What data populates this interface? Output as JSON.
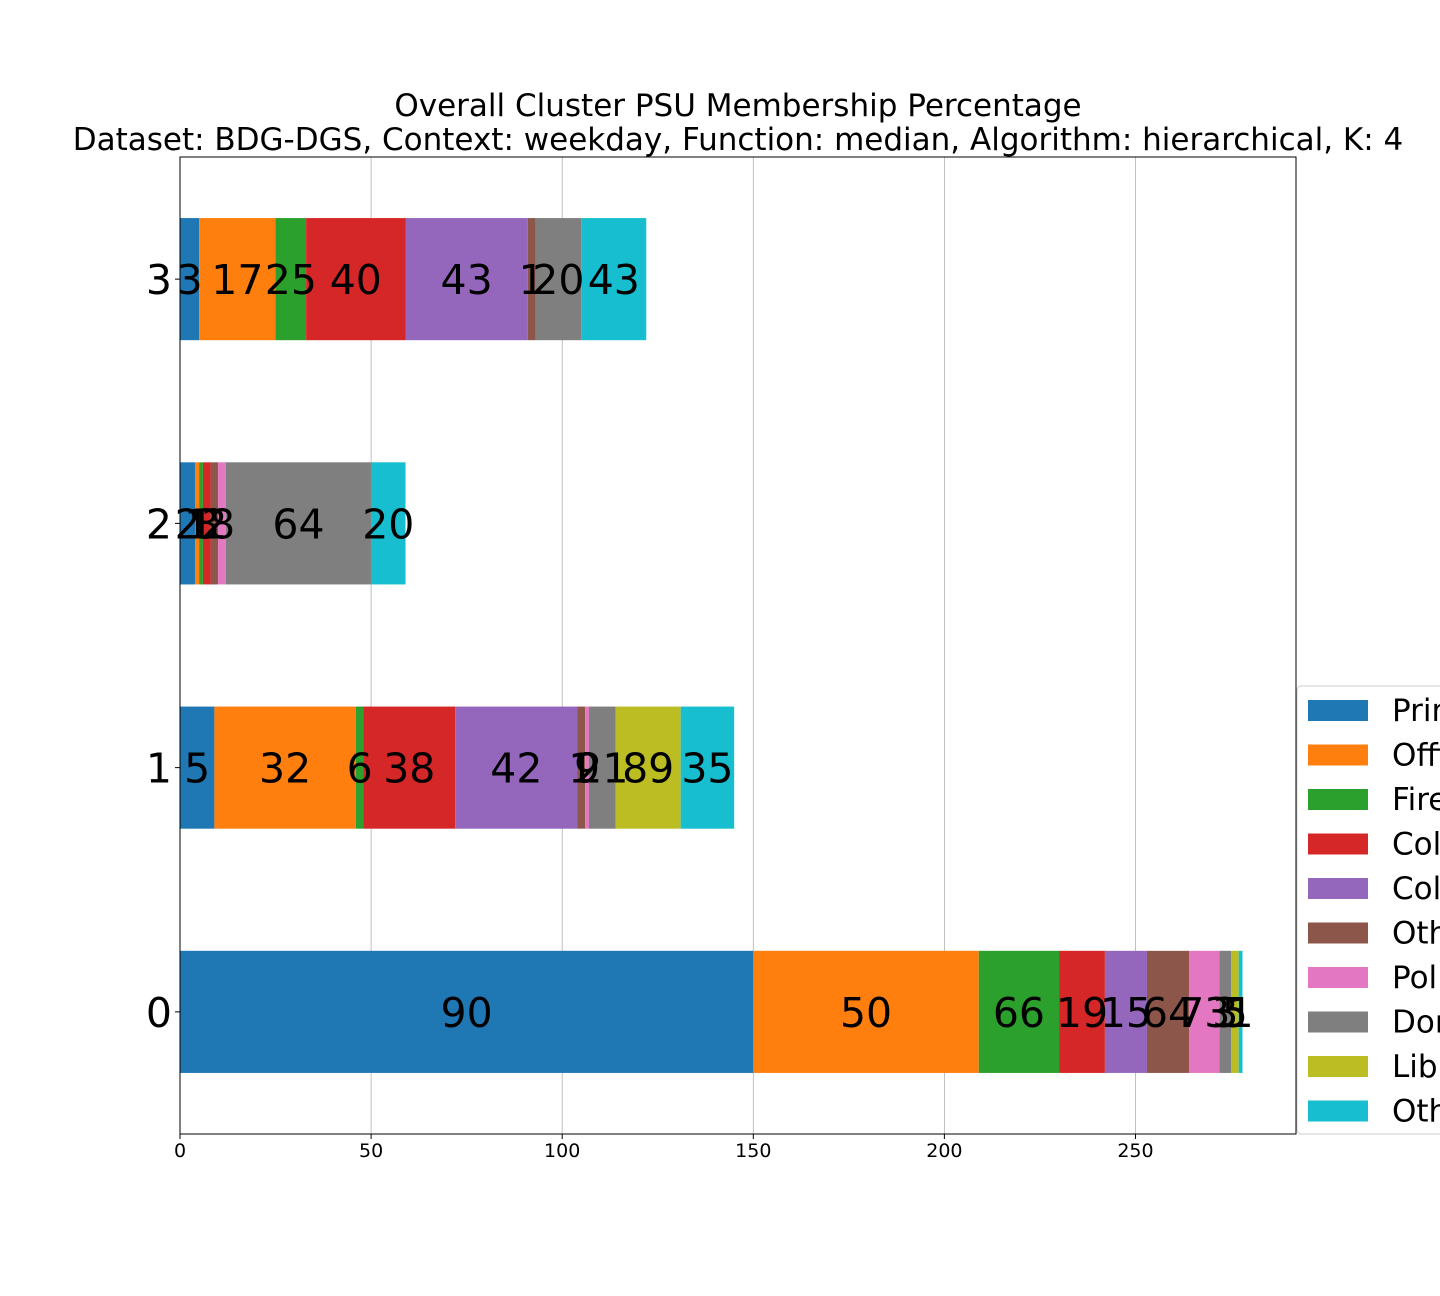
{
  "chart_data": {
    "type": "bar",
    "orientation": "horizontal",
    "stacked": true,
    "title": "Overall Cluster  PSU Membership Percentage",
    "subtitle": "Dataset: BDG-DGS, Context: weekday, Function: median, Algorithm: hierarchical, K: 4",
    "xlabel": "",
    "ylabel": "",
    "categories": [
      "0",
      "1",
      "2",
      "3"
    ],
    "xlim": [
      0,
      292
    ],
    "xticks": [
      0,
      50,
      100,
      150,
      200,
      250
    ],
    "grid": "x",
    "legend_position": "right",
    "series": [
      {
        "name": "Prim",
        "color": "#1f77b4",
        "values": [
          150,
          9,
          4,
          5
        ],
        "labels": [
          "90",
          "5",
          "2",
          "3"
        ]
      },
      {
        "name": "Offi",
        "color": "#ff7f0e",
        "values": [
          59,
          37,
          1,
          20
        ],
        "labels": [
          "50",
          "32",
          "1",
          "17"
        ]
      },
      {
        "name": "Fire",
        "color": "#2ca02c",
        "values": [
          21,
          2,
          1,
          8
        ],
        "labels": [
          "66",
          "6",
          "1",
          "25"
        ]
      },
      {
        "name": "Col",
        "color": "#d62728",
        "values": [
          12,
          24,
          2,
          26
        ],
        "labels": [
          "19",
          "38",
          "3",
          "40"
        ]
      },
      {
        "name": "Col",
        "color": "#9467bd",
        "values": [
          11,
          32,
          0,
          32
        ],
        "labels": [
          "15",
          "42",
          "",
          "43"
        ]
      },
      {
        "name": "Oth",
        "color": "#8c564b",
        "values": [
          11,
          2,
          2,
          2
        ],
        "labels": [
          "64",
          "1",
          "2",
          "1"
        ]
      },
      {
        "name": "Poli",
        "color": "#e377c2",
        "values": [
          8,
          1,
          2,
          0
        ],
        "labels": [
          "73",
          "9",
          "8",
          ""
        ]
      },
      {
        "name": "Dor",
        "color": "#7f7f7f",
        "values": [
          3,
          7,
          38,
          12
        ],
        "labels": [
          "3",
          "21",
          "64",
          "20"
        ]
      },
      {
        "name": "Libr",
        "color": "#bcbd22",
        "values": [
          2,
          17,
          0,
          0
        ],
        "labels": [
          "5",
          "89",
          "",
          ""
        ]
      },
      {
        "name": "Oth",
        "color": "#17becf",
        "values": [
          1,
          14,
          9,
          17
        ],
        "labels": [
          "1",
          "35",
          "20",
          "43"
        ]
      }
    ]
  }
}
